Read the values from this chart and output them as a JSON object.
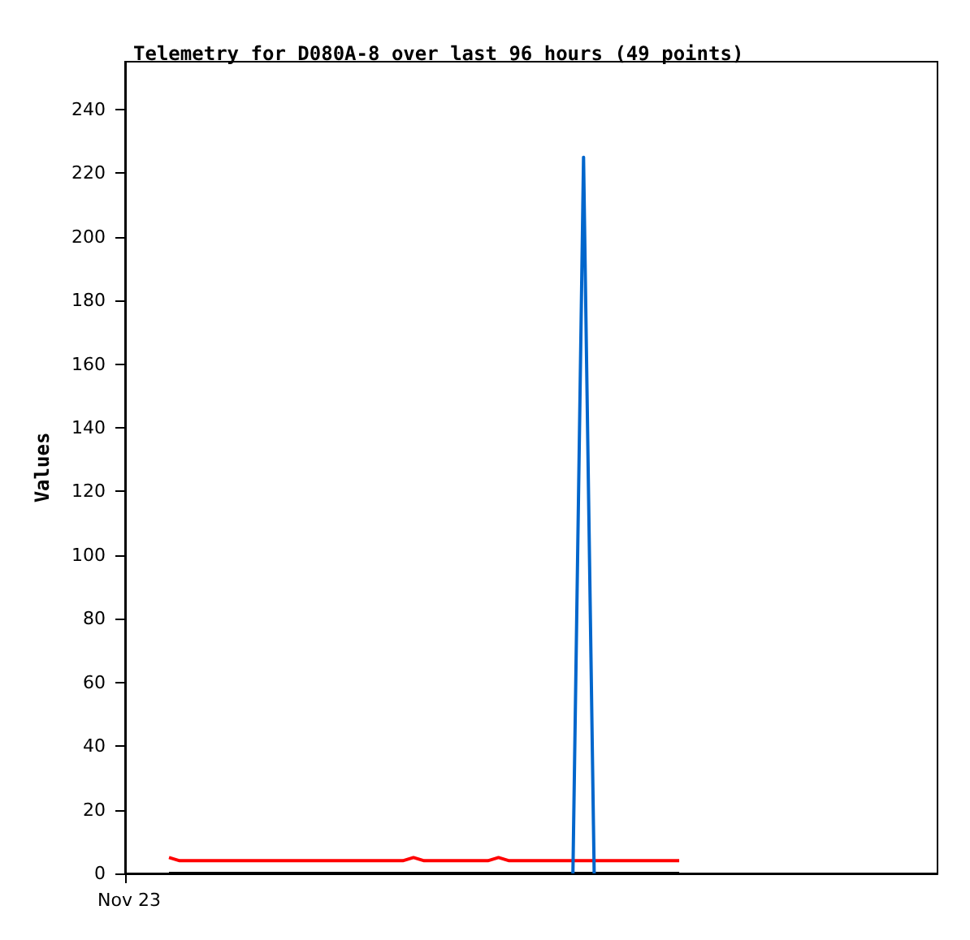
{
  "chart_data": {
    "type": "line",
    "title": "Telemetry for D080A-8 over last 96 hours (49 points)",
    "ylabel": "Values",
    "categories": [
      null,
      null,
      null,
      null,
      null,
      null,
      null,
      null,
      null,
      null,
      null,
      null,
      null,
      null,
      null,
      null,
      null,
      null,
      null,
      null,
      null,
      null,
      null,
      null,
      null,
      null,
      null,
      null,
      null,
      null,
      null,
      null,
      null,
      null,
      null,
      null,
      null,
      null,
      null,
      null,
      null,
      null,
      null,
      null,
      null,
      null,
      null,
      null,
      null
    ],
    "annotations": [
      "Nov 23"
    ],
    "series": [
      {
        "color": "#0066cc",
        "values": [
          null,
          null,
          null,
          null,
          null,
          null,
          null,
          null,
          null,
          null,
          null,
          null,
          null,
          null,
          null,
          null,
          null,
          null,
          null,
          null,
          null,
          null,
          null,
          null,
          null,
          null,
          null,
          null,
          null,
          null,
          null,
          null,
          null,
          null,
          null,
          null,
          null,
          null,
          0,
          225,
          0,
          null,
          null,
          null,
          null,
          null,
          null,
          null,
          null
        ]
      },
      {
        "color": "#ff0000",
        "values": [
          5,
          4,
          4,
          4,
          4,
          4,
          4,
          4,
          4,
          4,
          4,
          4,
          4,
          4,
          4,
          4,
          4,
          4,
          4,
          4,
          4,
          4,
          4,
          5,
          4,
          4,
          4,
          4,
          4,
          4,
          4,
          5,
          4,
          4,
          4,
          4,
          4,
          4,
          4,
          4,
          4,
          4,
          4,
          4,
          4,
          4,
          4,
          4,
          4
        ]
      },
      {
        "color": "#000000",
        "values": [
          0,
          0,
          0,
          0,
          0,
          0,
          0,
          0,
          0,
          0,
          0,
          0,
          0,
          0,
          0,
          0,
          0,
          0,
          0,
          0,
          0,
          0,
          0,
          0,
          0,
          0,
          0,
          0,
          0,
          0,
          0,
          0,
          0,
          0,
          0,
          0,
          0,
          0,
          0,
          0,
          0,
          0,
          0,
          0,
          0,
          0,
          0,
          0,
          0
        ]
      }
    ],
    "ylim": [
      0,
      255
    ],
    "yticks": [
      0,
      20,
      40,
      60,
      80,
      100,
      120,
      140,
      160,
      180,
      200,
      220,
      240
    ],
    "grid": false,
    "marker": "none",
    "line_style": "solid"
  }
}
